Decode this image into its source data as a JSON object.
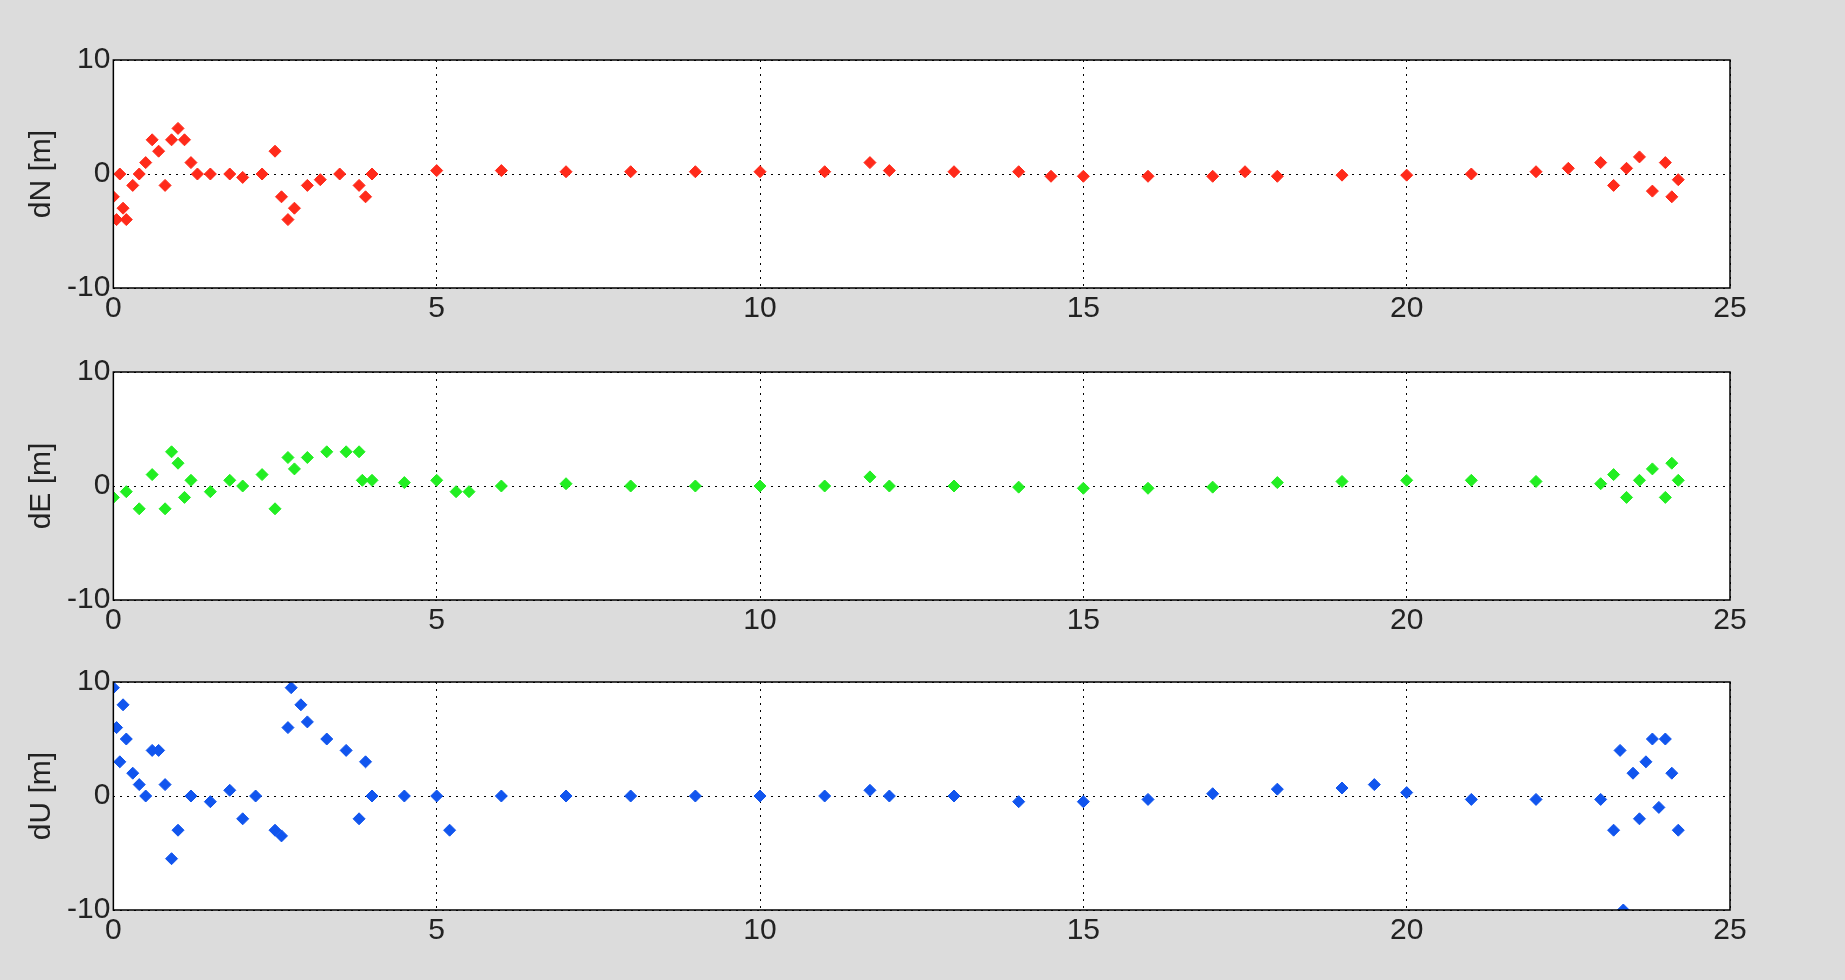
{
  "chart_data": [
    {
      "type": "scatter",
      "ylabel": "dN [m]",
      "xlim": [
        0,
        25
      ],
      "ylim": [
        -10,
        10
      ],
      "xticks": [
        0,
        5,
        10,
        15,
        20,
        25
      ],
      "yticks": [
        -10,
        0,
        10
      ],
      "grid": true,
      "marker": "diamond",
      "series": [
        {
          "color": "#ff2a1a",
          "x": [
            0,
            0.05,
            0.1,
            0.15,
            0.2,
            0.3,
            0.4,
            0.5,
            0.6,
            0.7,
            0.8,
            0.9,
            1.0,
            1.1,
            1.2,
            1.3,
            1.5,
            1.8,
            2.0,
            2.3,
            2.5,
            2.6,
            2.7,
            2.8,
            3.0,
            3.2,
            3.5,
            3.8,
            3.9,
            4.0,
            5,
            6,
            7,
            8,
            9,
            10,
            11,
            11.7,
            12,
            13,
            14,
            14.5,
            15,
            16,
            17,
            17.5,
            18,
            19,
            20,
            21,
            22,
            22.5,
            23,
            23.2,
            23.4,
            23.6,
            23.8,
            24,
            24.1,
            24.2
          ],
          "values": [
            -2,
            -4,
            0,
            -3,
            -4,
            -1,
            0,
            1,
            3,
            2,
            -1,
            3,
            4,
            3,
            1,
            0,
            0,
            0,
            -0.3,
            0,
            2,
            -2,
            -4,
            -3,
            -1,
            -0.5,
            0,
            -1,
            -2,
            0,
            0.3,
            0.3,
            0.2,
            0.2,
            0.2,
            0.2,
            0.2,
            1,
            0.3,
            0.2,
            0.2,
            -0.2,
            -0.2,
            -0.2,
            -0.2,
            0.2,
            -0.2,
            -0.1,
            -0.1,
            0,
            0.2,
            0.5,
            1,
            -1,
            0.5,
            1.5,
            -1.5,
            1,
            -2,
            -0.5
          ]
        }
      ]
    },
    {
      "type": "scatter",
      "ylabel": "dE [m]",
      "xlim": [
        0,
        25
      ],
      "ylim": [
        -10,
        10
      ],
      "xticks": [
        0,
        5,
        10,
        15,
        20,
        25
      ],
      "yticks": [
        -10,
        0,
        10
      ],
      "grid": true,
      "marker": "diamond",
      "series": [
        {
          "color": "#22ee22",
          "x": [
            0,
            0.2,
            0.4,
            0.6,
            0.8,
            0.9,
            1.0,
            1.1,
            1.2,
            1.5,
            1.8,
            2.0,
            2.3,
            2.5,
            2.7,
            2.8,
            3.0,
            3.3,
            3.6,
            3.8,
            3.85,
            4,
            4.5,
            5,
            5.3,
            5.5,
            6,
            7,
            8,
            9,
            10,
            11,
            11.7,
            12,
            13,
            14,
            15,
            16,
            17,
            18,
            19,
            20,
            21,
            22,
            23,
            23.2,
            23.4,
            23.6,
            23.8,
            24,
            24.1,
            24.2
          ],
          "values": [
            -1,
            -0.5,
            -2,
            1,
            -2,
            3,
            2,
            -1,
            0.5,
            -0.5,
            0.5,
            0,
            1,
            -2,
            2.5,
            1.5,
            2.5,
            3,
            3,
            3,
            0.5,
            0.5,
            0.3,
            0.5,
            -0.5,
            -0.5,
            0,
            0.2,
            0,
            0,
            0,
            0,
            0.8,
            0,
            0,
            -0.1,
            -0.2,
            -0.2,
            -0.1,
            0.3,
            0.4,
            0.5,
            0.5,
            0.4,
            0.2,
            1,
            -1,
            0.5,
            1.5,
            -1,
            2,
            0.5
          ]
        }
      ]
    },
    {
      "type": "scatter",
      "ylabel": "dU [m]",
      "xlim": [
        0,
        25
      ],
      "ylim": [
        -10,
        10
      ],
      "xticks": [
        0,
        5,
        10,
        15,
        20,
        25
      ],
      "yticks": [
        -10,
        0,
        10
      ],
      "grid": true,
      "marker": "diamond",
      "series": [
        {
          "color": "#1155ee",
          "x": [
            0,
            0.05,
            0.1,
            0.15,
            0.2,
            0.3,
            0.4,
            0.5,
            0.6,
            0.7,
            0.8,
            0.9,
            1.0,
            1.2,
            1.5,
            1.8,
            2.0,
            2.2,
            2.5,
            2.6,
            2.7,
            2.75,
            2.9,
            3.0,
            3.3,
            3.6,
            3.9,
            3.8,
            4.0,
            4.5,
            5,
            5.2,
            6,
            7,
            8,
            9,
            10,
            11,
            11.7,
            12,
            13,
            14,
            15,
            16,
            17,
            18,
            19,
            19.5,
            20,
            21,
            22,
            23,
            23.2,
            23.3,
            23.35,
            23.5,
            23.6,
            23.7,
            23.8,
            23.9,
            24,
            24.1,
            24.2
          ],
          "values": [
            9.5,
            6,
            3,
            8,
            5,
            2,
            1,
            0,
            4,
            4,
            1,
            -5.5,
            -3,
            0,
            -0.5,
            0.5,
            -2,
            0,
            -3,
            -3.5,
            6,
            9.5,
            8,
            6.5,
            5,
            4,
            3,
            -2,
            0,
            0,
            0,
            -3,
            0,
            0,
            0,
            0,
            0,
            0,
            0.5,
            0,
            0,
            -0.5,
            -0.5,
            -0.3,
            0.2,
            0.6,
            0.7,
            1,
            0.3,
            -0.3,
            -0.3,
            -0.3,
            -3,
            4,
            -10,
            2,
            -2,
            3,
            5,
            -1,
            5,
            2,
            -3
          ]
        }
      ]
    }
  ]
}
